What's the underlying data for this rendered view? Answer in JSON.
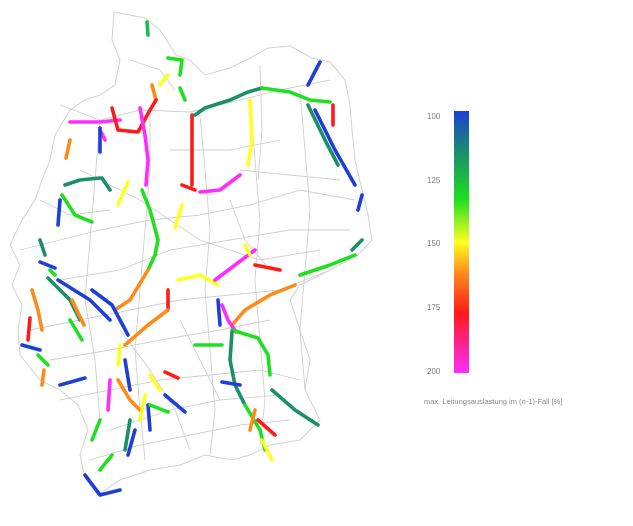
{
  "legend": {
    "title": "max. Leitungsauslastung im (n-1)-Fall [%]",
    "ticks": [
      "100",
      "125",
      "150",
      "175",
      "200"
    ],
    "range": [
      100,
      200
    ],
    "colors": [
      "#1d3fd6",
      "#1a8f6a",
      "#1fe01f",
      "#ffff20",
      "#ff8a1a",
      "#ff1a1a",
      "#ff2bff"
    ]
  },
  "map": {
    "background_grid_color": "#c8c8c8",
    "border_color": "#d0d0d0"
  }
}
